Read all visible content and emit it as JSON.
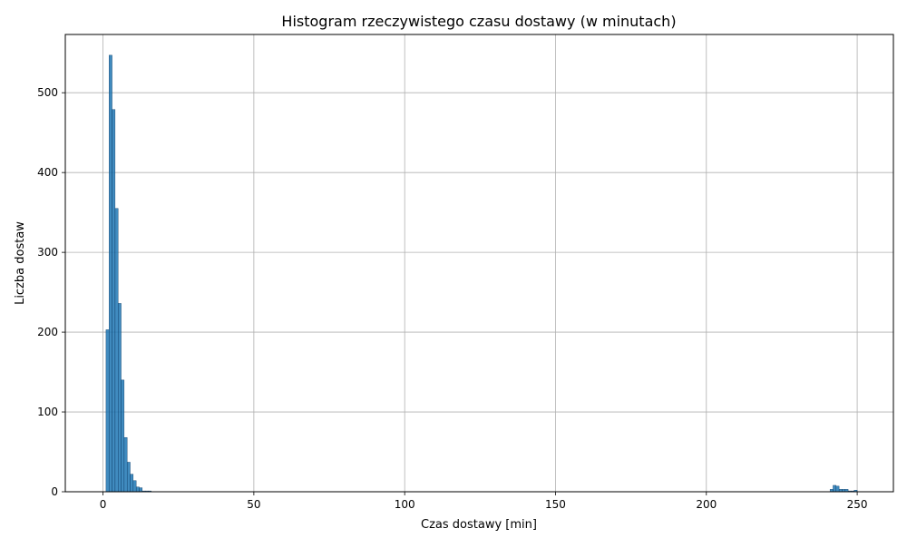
{
  "chart_data": {
    "type": "bar",
    "title": "Histogram rzeczywistego czasu dostawy (w minutach)",
    "xlabel": "Czas dostawy [min]",
    "ylabel": "Liczba dostaw",
    "xlim": [
      -12.5,
      262
    ],
    "ylim": [
      0,
      573
    ],
    "xticks": [
      0,
      50,
      100,
      150,
      200,
      250
    ],
    "yticks": [
      0,
      100,
      200,
      300,
      400,
      500
    ],
    "grid": true,
    "bar_color": "#1f77b4",
    "bin_width": 1,
    "bins": [
      {
        "x0": 1,
        "value": 203
      },
      {
        "x0": 2,
        "value": 547
      },
      {
        "x0": 3,
        "value": 479
      },
      {
        "x0": 4,
        "value": 355
      },
      {
        "x0": 5,
        "value": 236
      },
      {
        "x0": 6,
        "value": 140
      },
      {
        "x0": 7,
        "value": 68
      },
      {
        "x0": 8,
        "value": 37
      },
      {
        "x0": 9,
        "value": 22
      },
      {
        "x0": 10,
        "value": 14
      },
      {
        "x0": 11,
        "value": 6
      },
      {
        "x0": 12,
        "value": 5
      },
      {
        "x0": 13,
        "value": 1
      },
      {
        "x0": 14,
        "value": 1
      },
      {
        "x0": 15,
        "value": 1
      },
      {
        "x0": 241,
        "value": 3
      },
      {
        "x0": 242,
        "value": 8
      },
      {
        "x0": 243,
        "value": 7
      },
      {
        "x0": 244,
        "value": 3
      },
      {
        "x0": 245,
        "value": 3
      },
      {
        "x0": 246,
        "value": 3
      },
      {
        "x0": 247,
        "value": 1
      },
      {
        "x0": 248,
        "value": 1
      },
      {
        "x0": 249,
        "value": 2
      }
    ]
  }
}
